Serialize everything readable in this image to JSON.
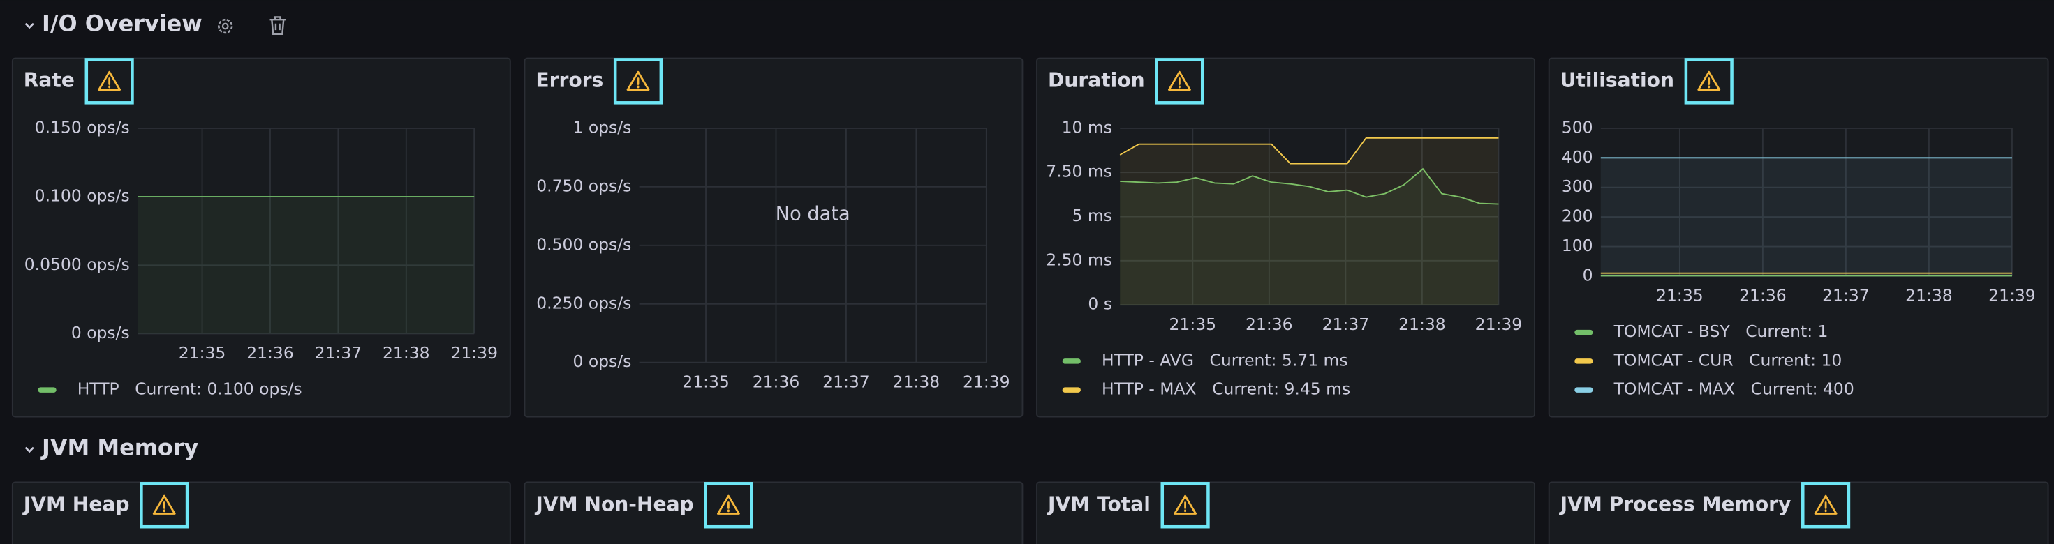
{
  "rows": [
    {
      "title": "I/O Overview",
      "panels": [
        {
          "title": "Rate",
          "chart_data": {
            "type": "line",
            "xlim": [
              1294.05,
              1299
            ],
            "xticks": [
              {
                "value": 1295,
                "label": "21:35"
              },
              {
                "value": 1296,
                "label": "21:36"
              },
              {
                "value": 1297,
                "label": "21:37"
              },
              {
                "value": 1298,
                "label": "21:38"
              },
              {
                "value": 1299,
                "label": "21:39"
              }
            ],
            "ylim": [
              0,
              0.15
            ],
            "yticks": [
              {
                "value": 0,
                "label": "0 ops/s"
              },
              {
                "value": 0.05,
                "label": "0.0500 ops/s"
              },
              {
                "value": 0.1,
                "label": "0.100 ops/s"
              },
              {
                "value": 0.15,
                "label": "0.150 ops/s"
              }
            ],
            "grid": true,
            "series": [
              {
                "name": "HTTP",
                "color": "#73bf69",
                "values": [
                  0.1,
                  0.1
                ],
                "current_label": "Current: 0.100 ops/s"
              }
            ]
          }
        },
        {
          "title": "Errors",
          "chart_data": {
            "type": "line",
            "xlim": [
              1294.05,
              1299
            ],
            "xticks": [
              {
                "value": 1295,
                "label": "21:35"
              },
              {
                "value": 1296,
                "label": "21:36"
              },
              {
                "value": 1297,
                "label": "21:37"
              },
              {
                "value": 1298,
                "label": "21:38"
              },
              {
                "value": 1299,
                "label": "21:39"
              }
            ],
            "ylim": [
              0,
              1
            ],
            "yticks": [
              {
                "value": 0,
                "label": "0 ops/s"
              },
              {
                "value": 0.25,
                "label": "0.250 ops/s"
              },
              {
                "value": 0.5,
                "label": "0.500 ops/s"
              },
              {
                "value": 0.75,
                "label": "0.750 ops/s"
              },
              {
                "value": 1,
                "label": "1 ops/s"
              }
            ],
            "grid": true,
            "message": "No data",
            "series": []
          }
        },
        {
          "title": "Duration",
          "chart_data": {
            "type": "line",
            "xlim": [
              1294.05,
              1299
            ],
            "xticks": [
              {
                "value": 1295,
                "label": "21:35"
              },
              {
                "value": 1296,
                "label": "21:36"
              },
              {
                "value": 1297,
                "label": "21:37"
              },
              {
                "value": 1298,
                "label": "21:38"
              },
              {
                "value": 1299,
                "label": "21:39"
              }
            ],
            "ylim": [
              0,
              10
            ],
            "yticks": [
              {
                "value": 0,
                "label": "0 s"
              },
              {
                "value": 2.5,
                "label": "2.50 ms"
              },
              {
                "value": 5,
                "label": "5 ms"
              },
              {
                "value": 7.5,
                "label": "7.50 ms"
              },
              {
                "value": 10,
                "label": "10 ms"
              }
            ],
            "grid": true,
            "series": [
              {
                "name": "HTTP - AVG",
                "color": "#73bf69",
                "values": [
                  7.0,
                  6.95,
                  6.9,
                  6.95,
                  7.2,
                  6.9,
                  6.85,
                  7.3,
                  6.95,
                  6.85,
                  6.7,
                  6.4,
                  6.5,
                  6.1,
                  6.3,
                  6.8,
                  7.7,
                  6.3,
                  6.1,
                  5.75,
                  5.71
                ],
                "current_label": "Current: 5.71 ms"
              },
              {
                "name": "HTTP - MAX",
                "color": "#f2c94c",
                "values": [
                  8.5,
                  9.1,
                  9.1,
                  9.1,
                  9.1,
                  9.1,
                  9.1,
                  9.1,
                  9.1,
                  8.0,
                  8.0,
                  8.0,
                  8.0,
                  9.45,
                  9.45,
                  9.45,
                  9.45,
                  9.45,
                  9.45,
                  9.45,
                  9.45
                ],
                "current_label": "Current: 9.45 ms"
              }
            ]
          }
        },
        {
          "title": "Utilisation",
          "chart_data": {
            "type": "line",
            "xlim": [
              1294.05,
              1299
            ],
            "xticks": [
              {
                "value": 1295,
                "label": "21:35"
              },
              {
                "value": 1296,
                "label": "21:36"
              },
              {
                "value": 1297,
                "label": "21:37"
              },
              {
                "value": 1298,
                "label": "21:38"
              },
              {
                "value": 1299,
                "label": "21:39"
              }
            ],
            "ylim": [
              0,
              500
            ],
            "yticks": [
              0,
              100,
              200,
              300,
              400,
              500
            ],
            "grid": true,
            "series": [
              {
                "name": "TOMCAT - BSY",
                "color": "#73bf69",
                "values": [
                  1,
                  1
                ],
                "current_label": "Current: 1"
              },
              {
                "name": "TOMCAT - CUR",
                "color": "#f2c94c",
                "values": [
                  10,
                  10
                ],
                "current_label": "Current: 10"
              },
              {
                "name": "TOMCAT - MAX",
                "color": "#8ad0e6",
                "values": [
                  400,
                  400
                ],
                "current_label": "Current: 400"
              }
            ]
          }
        }
      ]
    },
    {
      "title": "JVM Memory",
      "panels": [
        {
          "title": "JVM Heap"
        },
        {
          "title": "JVM Non-Heap"
        },
        {
          "title": "JVM Total"
        },
        {
          "title": "JVM Process Memory"
        }
      ]
    }
  ]
}
